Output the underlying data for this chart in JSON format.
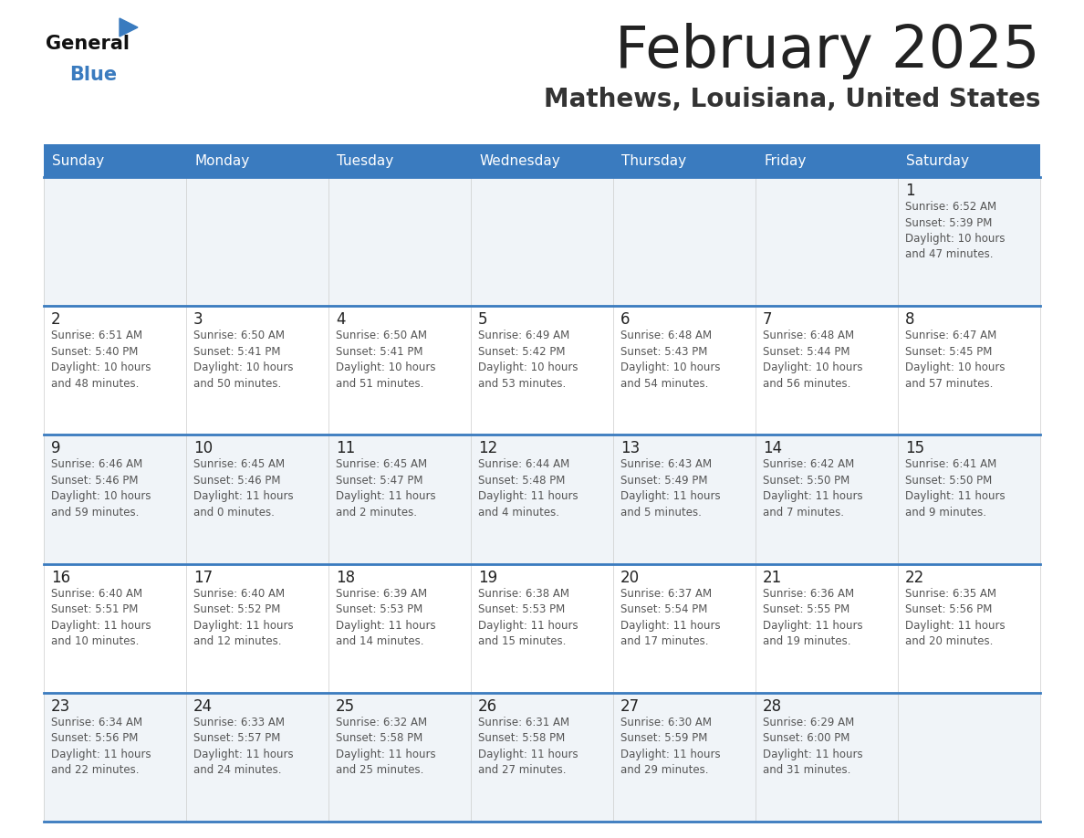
{
  "title": "February 2025",
  "subtitle": "Mathews, Louisiana, United States",
  "header_color": "#3a7bbf",
  "header_text_color": "#ffffff",
  "border_color": "#3a7bbf",
  "day_names": [
    "Sunday",
    "Monday",
    "Tuesday",
    "Wednesday",
    "Thursday",
    "Friday",
    "Saturday"
  ],
  "title_color": "#222222",
  "subtitle_color": "#333333",
  "day_num_color": "#222222",
  "info_color": "#555555",
  "cell_bg_even": "#f0f4f8",
  "cell_bg_odd": "#ffffff",
  "logo_general_color": "#111111",
  "logo_blue_color": "#3a7bbf",
  "logo_triangle_color": "#3a7bbf",
  "weeks": [
    [
      {
        "day": 0,
        "info": ""
      },
      {
        "day": 0,
        "info": ""
      },
      {
        "day": 0,
        "info": ""
      },
      {
        "day": 0,
        "info": ""
      },
      {
        "day": 0,
        "info": ""
      },
      {
        "day": 0,
        "info": ""
      },
      {
        "day": 1,
        "info": "Sunrise: 6:52 AM\nSunset: 5:39 PM\nDaylight: 10 hours\nand 47 minutes."
      }
    ],
    [
      {
        "day": 2,
        "info": "Sunrise: 6:51 AM\nSunset: 5:40 PM\nDaylight: 10 hours\nand 48 minutes."
      },
      {
        "day": 3,
        "info": "Sunrise: 6:50 AM\nSunset: 5:41 PM\nDaylight: 10 hours\nand 50 minutes."
      },
      {
        "day": 4,
        "info": "Sunrise: 6:50 AM\nSunset: 5:41 PM\nDaylight: 10 hours\nand 51 minutes."
      },
      {
        "day": 5,
        "info": "Sunrise: 6:49 AM\nSunset: 5:42 PM\nDaylight: 10 hours\nand 53 minutes."
      },
      {
        "day": 6,
        "info": "Sunrise: 6:48 AM\nSunset: 5:43 PM\nDaylight: 10 hours\nand 54 minutes."
      },
      {
        "day": 7,
        "info": "Sunrise: 6:48 AM\nSunset: 5:44 PM\nDaylight: 10 hours\nand 56 minutes."
      },
      {
        "day": 8,
        "info": "Sunrise: 6:47 AM\nSunset: 5:45 PM\nDaylight: 10 hours\nand 57 minutes."
      }
    ],
    [
      {
        "day": 9,
        "info": "Sunrise: 6:46 AM\nSunset: 5:46 PM\nDaylight: 10 hours\nand 59 minutes."
      },
      {
        "day": 10,
        "info": "Sunrise: 6:45 AM\nSunset: 5:46 PM\nDaylight: 11 hours\nand 0 minutes."
      },
      {
        "day": 11,
        "info": "Sunrise: 6:45 AM\nSunset: 5:47 PM\nDaylight: 11 hours\nand 2 minutes."
      },
      {
        "day": 12,
        "info": "Sunrise: 6:44 AM\nSunset: 5:48 PM\nDaylight: 11 hours\nand 4 minutes."
      },
      {
        "day": 13,
        "info": "Sunrise: 6:43 AM\nSunset: 5:49 PM\nDaylight: 11 hours\nand 5 minutes."
      },
      {
        "day": 14,
        "info": "Sunrise: 6:42 AM\nSunset: 5:50 PM\nDaylight: 11 hours\nand 7 minutes."
      },
      {
        "day": 15,
        "info": "Sunrise: 6:41 AM\nSunset: 5:50 PM\nDaylight: 11 hours\nand 9 minutes."
      }
    ],
    [
      {
        "day": 16,
        "info": "Sunrise: 6:40 AM\nSunset: 5:51 PM\nDaylight: 11 hours\nand 10 minutes."
      },
      {
        "day": 17,
        "info": "Sunrise: 6:40 AM\nSunset: 5:52 PM\nDaylight: 11 hours\nand 12 minutes."
      },
      {
        "day": 18,
        "info": "Sunrise: 6:39 AM\nSunset: 5:53 PM\nDaylight: 11 hours\nand 14 minutes."
      },
      {
        "day": 19,
        "info": "Sunrise: 6:38 AM\nSunset: 5:53 PM\nDaylight: 11 hours\nand 15 minutes."
      },
      {
        "day": 20,
        "info": "Sunrise: 6:37 AM\nSunset: 5:54 PM\nDaylight: 11 hours\nand 17 minutes."
      },
      {
        "day": 21,
        "info": "Sunrise: 6:36 AM\nSunset: 5:55 PM\nDaylight: 11 hours\nand 19 minutes."
      },
      {
        "day": 22,
        "info": "Sunrise: 6:35 AM\nSunset: 5:56 PM\nDaylight: 11 hours\nand 20 minutes."
      }
    ],
    [
      {
        "day": 23,
        "info": "Sunrise: 6:34 AM\nSunset: 5:56 PM\nDaylight: 11 hours\nand 22 minutes."
      },
      {
        "day": 24,
        "info": "Sunrise: 6:33 AM\nSunset: 5:57 PM\nDaylight: 11 hours\nand 24 minutes."
      },
      {
        "day": 25,
        "info": "Sunrise: 6:32 AM\nSunset: 5:58 PM\nDaylight: 11 hours\nand 25 minutes."
      },
      {
        "day": 26,
        "info": "Sunrise: 6:31 AM\nSunset: 5:58 PM\nDaylight: 11 hours\nand 27 minutes."
      },
      {
        "day": 27,
        "info": "Sunrise: 6:30 AM\nSunset: 5:59 PM\nDaylight: 11 hours\nand 29 minutes."
      },
      {
        "day": 28,
        "info": "Sunrise: 6:29 AM\nSunset: 6:00 PM\nDaylight: 11 hours\nand 31 minutes."
      },
      {
        "day": 0,
        "info": ""
      }
    ]
  ],
  "fig_width": 11.88,
  "fig_height": 9.18,
  "dpi": 100
}
